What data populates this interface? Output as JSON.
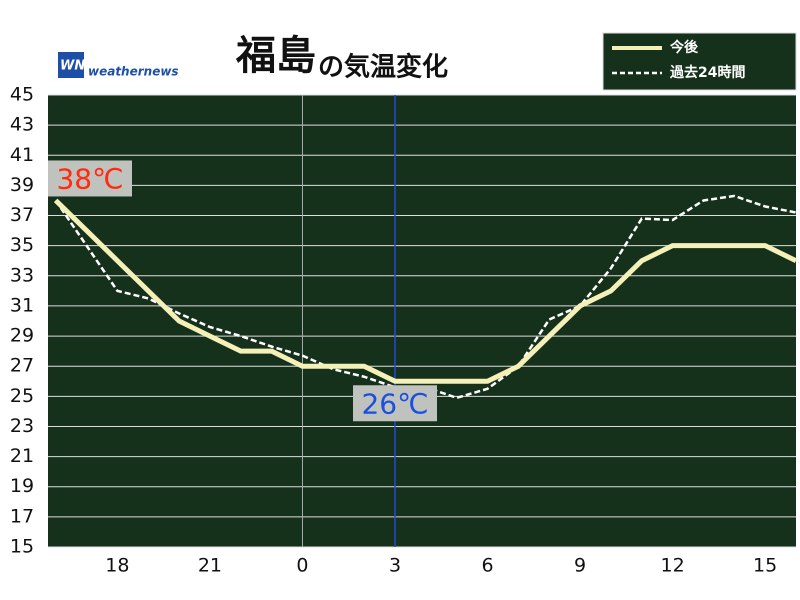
{
  "chart_data": {
    "type": "line",
    "title": "福島",
    "title_suffix": "の気温変化",
    "logo": "weathernews",
    "x": [
      16,
      17,
      18,
      19,
      20,
      21,
      22,
      23,
      24,
      25,
      26,
      27,
      28,
      29,
      30,
      31,
      32,
      33,
      34,
      35,
      36,
      37,
      38,
      39,
      40
    ],
    "series": [
      {
        "name": "今後",
        "color": "#f5f0b8",
        "style": "solid",
        "values": [
          38,
          36,
          34,
          32,
          30,
          29,
          28,
          28,
          27,
          27,
          27,
          26,
          26,
          26,
          26,
          27,
          29,
          31,
          32,
          34,
          35,
          35,
          35,
          35,
          34
        ]
      },
      {
        "name": "過去24時間",
        "color": "#ffffff",
        "style": "dashed",
        "values": [
          38,
          35,
          32,
          31.5,
          30.5,
          29.6,
          29,
          28.3,
          27.7,
          26.8,
          26.3,
          25.6,
          25.6,
          24.9,
          25.5,
          27,
          30.1,
          31,
          33.5,
          36.8,
          36.7,
          38,
          38.3,
          37.6,
          37.2
        ]
      }
    ],
    "xlim": [
      15.75,
      40
    ],
    "xticks": [
      18,
      21,
      {
        "value": 24,
        "label": "0"
      },
      {
        "value": 27,
        "label": "3"
      },
      {
        "value": 30,
        "label": "6"
      },
      {
        "value": 33,
        "label": "9"
      },
      {
        "value": 36,
        "label": "12"
      },
      {
        "value": 39,
        "label": "15"
      }
    ],
    "ylim": [
      15,
      45
    ],
    "yticks": [
      15,
      17,
      19,
      21,
      23,
      25,
      27,
      29,
      31,
      33,
      35,
      37,
      39,
      41,
      43,
      45
    ],
    "grid": true,
    "day_line": 24,
    "now_line": 27,
    "annotations": [
      {
        "x": 16,
        "y": 38,
        "label": "38℃",
        "color": "#ff2a10"
      },
      {
        "x": 27,
        "y": 26,
        "label": "26℃",
        "color": "#1a4fe0"
      }
    ],
    "legend": "top-right"
  }
}
